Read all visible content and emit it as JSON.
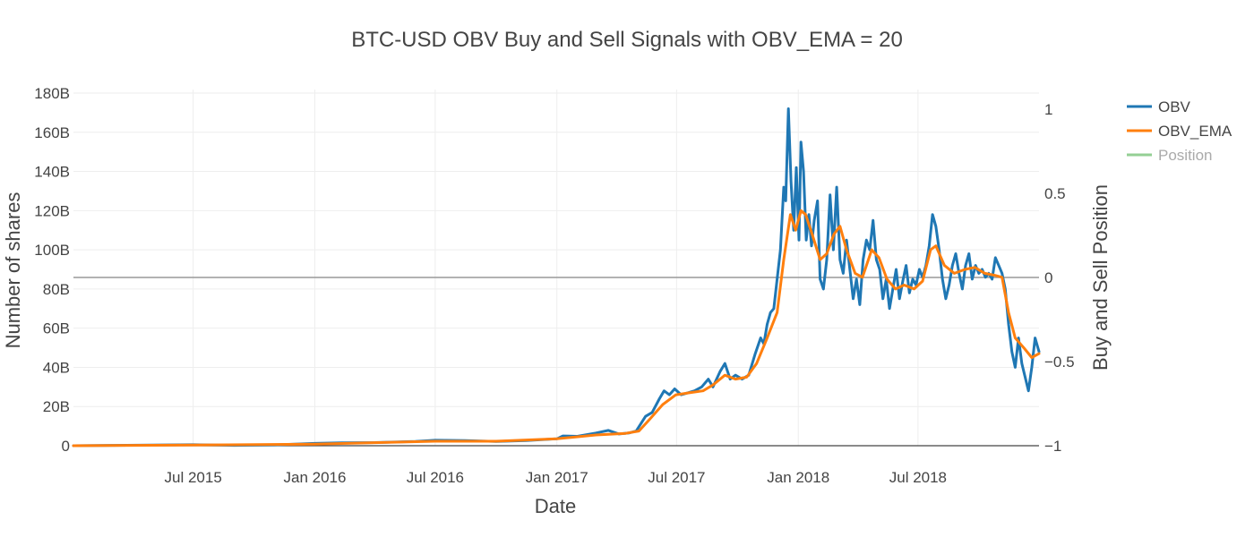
{
  "chart_data": {
    "type": "line",
    "title": "BTC-USD OBV Buy and Sell Signals with OBV_EMA = 20",
    "xlabel": "Date",
    "ylabel": "Number of shares",
    "y2label": "Buy and Sell Position",
    "x_range": [
      "2015-01-01",
      "2018-12-31"
    ],
    "x_ticks": [
      {
        "date": "2015-07-01",
        "label": "Jul 2015"
      },
      {
        "date": "2016-01-01",
        "label": "Jan 2016"
      },
      {
        "date": "2016-07-01",
        "label": "Jul 2016"
      },
      {
        "date": "2017-01-01",
        "label": "Jan 2017"
      },
      {
        "date": "2017-07-01",
        "label": "Jul 2017"
      },
      {
        "date": "2018-01-01",
        "label": "Jan 2018"
      },
      {
        "date": "2018-07-01",
        "label": "Jul 2018"
      }
    ],
    "ylim": [
      0,
      180
    ],
    "y_ticks": [
      {
        "value": 0,
        "label": "0"
      },
      {
        "value": 20,
        "label": "20B"
      },
      {
        "value": 40,
        "label": "40B"
      },
      {
        "value": 60,
        "label": "60B"
      },
      {
        "value": 80,
        "label": "80B"
      },
      {
        "value": 100,
        "label": "100B"
      },
      {
        "value": 120,
        "label": "120B"
      },
      {
        "value": 140,
        "label": "140B"
      },
      {
        "value": 160,
        "label": "160B"
      },
      {
        "value": 180,
        "label": "180B"
      }
    ],
    "y2lim": [
      -1,
      1
    ],
    "y2_ticks": [
      {
        "value": 1,
        "label": "1"
      },
      {
        "value": 0.5,
        "label": "0.5"
      },
      {
        "value": 0,
        "label": "0"
      },
      {
        "value": -0.5,
        "label": "−0.5"
      },
      {
        "value": -1,
        "label": "−1"
      }
    ],
    "grid": true,
    "legend_position": "top-right",
    "series": [
      {
        "name": "OBV",
        "color": "#1f77b4",
        "axis": "y",
        "points": [
          [
            "2015-01-01",
            0
          ],
          [
            "2015-03-01",
            0.2
          ],
          [
            "2015-05-01",
            0.3
          ],
          [
            "2015-07-01",
            0.5
          ],
          [
            "2015-09-01",
            0.2
          ],
          [
            "2015-11-01",
            0.4
          ],
          [
            "2016-01-01",
            1.2
          ],
          [
            "2016-02-15",
            1.5
          ],
          [
            "2016-04-01",
            1.6
          ],
          [
            "2016-06-01",
            2.2
          ],
          [
            "2016-07-01",
            2.8
          ],
          [
            "2016-08-15",
            2.6
          ],
          [
            "2016-10-01",
            2.2
          ],
          [
            "2016-11-15",
            2.6
          ],
          [
            "2017-01-01",
            3.5
          ],
          [
            "2017-01-10",
            5.0
          ],
          [
            "2017-02-01",
            4.8
          ],
          [
            "2017-03-01",
            6.5
          ],
          [
            "2017-03-20",
            7.8
          ],
          [
            "2017-04-05",
            6.0
          ],
          [
            "2017-04-20",
            6.5
          ],
          [
            "2017-05-01",
            7.5
          ],
          [
            "2017-05-15",
            15
          ],
          [
            "2017-05-25",
            17
          ],
          [
            "2017-06-05",
            24
          ],
          [
            "2017-06-12",
            28
          ],
          [
            "2017-06-20",
            26
          ],
          [
            "2017-06-28",
            29
          ],
          [
            "2017-07-08",
            26
          ],
          [
            "2017-07-18",
            27
          ],
          [
            "2017-07-28",
            28
          ],
          [
            "2017-08-08",
            30
          ],
          [
            "2017-08-18",
            34
          ],
          [
            "2017-08-25",
            30
          ],
          [
            "2017-09-05",
            38
          ],
          [
            "2017-09-12",
            42
          ],
          [
            "2017-09-20",
            34
          ],
          [
            "2017-09-28",
            36
          ],
          [
            "2017-10-08",
            34
          ],
          [
            "2017-10-18",
            36
          ],
          [
            "2017-10-28",
            47
          ],
          [
            "2017-11-05",
            55
          ],
          [
            "2017-11-10",
            52
          ],
          [
            "2017-11-15",
            62
          ],
          [
            "2017-11-20",
            68
          ],
          [
            "2017-11-25",
            70
          ],
          [
            "2017-11-30",
            85
          ],
          [
            "2017-12-05",
            100
          ],
          [
            "2017-12-10",
            132
          ],
          [
            "2017-12-13",
            125
          ],
          [
            "2017-12-17",
            172
          ],
          [
            "2017-12-21",
            135
          ],
          [
            "2017-12-25",
            110
          ],
          [
            "2017-12-29",
            142
          ],
          [
            "2018-01-02",
            105
          ],
          [
            "2018-01-05",
            155
          ],
          [
            "2018-01-09",
            140
          ],
          [
            "2018-01-13",
            105
          ],
          [
            "2018-01-17",
            118
          ],
          [
            "2018-01-21",
            102
          ],
          [
            "2018-01-25",
            115
          ],
          [
            "2018-01-30",
            125
          ],
          [
            "2018-02-03",
            85
          ],
          [
            "2018-02-08",
            80
          ],
          [
            "2018-02-13",
            95
          ],
          [
            "2018-02-18",
            128
          ],
          [
            "2018-02-23",
            100
          ],
          [
            "2018-02-28",
            132
          ],
          [
            "2018-03-05",
            95
          ],
          [
            "2018-03-10",
            88
          ],
          [
            "2018-03-15",
            105
          ],
          [
            "2018-03-20",
            90
          ],
          [
            "2018-03-25",
            75
          ],
          [
            "2018-03-30",
            85
          ],
          [
            "2018-04-04",
            72
          ],
          [
            "2018-04-09",
            95
          ],
          [
            "2018-04-14",
            105
          ],
          [
            "2018-04-19",
            100
          ],
          [
            "2018-04-24",
            115
          ],
          [
            "2018-04-29",
            95
          ],
          [
            "2018-05-04",
            90
          ],
          [
            "2018-05-09",
            75
          ],
          [
            "2018-05-14",
            85
          ],
          [
            "2018-05-19",
            70
          ],
          [
            "2018-05-24",
            80
          ],
          [
            "2018-05-29",
            90
          ],
          [
            "2018-06-03",
            75
          ],
          [
            "2018-06-08",
            84
          ],
          [
            "2018-06-13",
            92
          ],
          [
            "2018-06-18",
            78
          ],
          [
            "2018-06-23",
            85
          ],
          [
            "2018-06-28",
            82
          ],
          [
            "2018-07-03",
            90
          ],
          [
            "2018-07-08",
            86
          ],
          [
            "2018-07-13",
            92
          ],
          [
            "2018-07-18",
            102
          ],
          [
            "2018-07-23",
            118
          ],
          [
            "2018-07-28",
            112
          ],
          [
            "2018-08-02",
            100
          ],
          [
            "2018-08-07",
            85
          ],
          [
            "2018-08-12",
            75
          ],
          [
            "2018-08-17",
            82
          ],
          [
            "2018-08-22",
            92
          ],
          [
            "2018-08-27",
            98
          ],
          [
            "2018-09-01",
            88
          ],
          [
            "2018-09-06",
            80
          ],
          [
            "2018-09-11",
            92
          ],
          [
            "2018-09-16",
            98
          ],
          [
            "2018-09-21",
            85
          ],
          [
            "2018-09-26",
            92
          ],
          [
            "2018-10-01",
            88
          ],
          [
            "2018-10-06",
            90
          ],
          [
            "2018-10-11",
            86
          ],
          [
            "2018-10-16",
            88
          ],
          [
            "2018-10-21",
            85
          ],
          [
            "2018-10-26",
            96
          ],
          [
            "2018-10-31",
            92
          ],
          [
            "2018-11-05",
            88
          ],
          [
            "2018-11-10",
            80
          ],
          [
            "2018-11-15",
            62
          ],
          [
            "2018-11-20",
            48
          ],
          [
            "2018-11-25",
            40
          ],
          [
            "2018-11-30",
            55
          ],
          [
            "2018-12-05",
            42
          ],
          [
            "2018-12-10",
            35
          ],
          [
            "2018-12-15",
            28
          ],
          [
            "2018-12-20",
            40
          ],
          [
            "2018-12-25",
            55
          ],
          [
            "2018-12-31",
            48
          ]
        ]
      },
      {
        "name": "OBV_EMA",
        "color": "#ff7f0e",
        "axis": "y",
        "points": [
          [
            "2015-01-01",
            0
          ],
          [
            "2015-07-01",
            0.3
          ],
          [
            "2016-01-01",
            0.8
          ],
          [
            "2016-07-01",
            2.3
          ],
          [
            "2016-10-01",
            2.3
          ],
          [
            "2017-01-01",
            3.5
          ],
          [
            "2017-03-01",
            5.5
          ],
          [
            "2017-04-15",
            6.3
          ],
          [
            "2017-05-05",
            7.5
          ],
          [
            "2017-05-20",
            13
          ],
          [
            "2017-06-10",
            21
          ],
          [
            "2017-06-30",
            26
          ],
          [
            "2017-07-20",
            27
          ],
          [
            "2017-08-10",
            28
          ],
          [
            "2017-08-25",
            31
          ],
          [
            "2017-09-12",
            36
          ],
          [
            "2017-09-28",
            34
          ],
          [
            "2017-10-15",
            35
          ],
          [
            "2017-10-30",
            42
          ],
          [
            "2017-11-15",
            55
          ],
          [
            "2017-11-30",
            68
          ],
          [
            "2017-12-10",
            95
          ],
          [
            "2017-12-20",
            118
          ],
          [
            "2017-12-28",
            110
          ],
          [
            "2018-01-05",
            120
          ],
          [
            "2018-01-12",
            118
          ],
          [
            "2018-01-22",
            108
          ],
          [
            "2018-02-03",
            95
          ],
          [
            "2018-02-13",
            98
          ],
          [
            "2018-02-24",
            108
          ],
          [
            "2018-03-05",
            112
          ],
          [
            "2018-03-15",
            100
          ],
          [
            "2018-03-28",
            88
          ],
          [
            "2018-04-08",
            86
          ],
          [
            "2018-04-22",
            100
          ],
          [
            "2018-05-03",
            96
          ],
          [
            "2018-05-15",
            85
          ],
          [
            "2018-05-28",
            80
          ],
          [
            "2018-06-10",
            82
          ],
          [
            "2018-06-25",
            80
          ],
          [
            "2018-07-08",
            84
          ],
          [
            "2018-07-20",
            100
          ],
          [
            "2018-07-28",
            102
          ],
          [
            "2018-08-10",
            92
          ],
          [
            "2018-08-25",
            88
          ],
          [
            "2018-09-10",
            90
          ],
          [
            "2018-09-25",
            91
          ],
          [
            "2018-10-10",
            88
          ],
          [
            "2018-10-25",
            87
          ],
          [
            "2018-11-05",
            86
          ],
          [
            "2018-11-15",
            68
          ],
          [
            "2018-11-25",
            55
          ],
          [
            "2018-12-08",
            50
          ],
          [
            "2018-12-20",
            45
          ],
          [
            "2018-12-31",
            47
          ]
        ]
      },
      {
        "name": "Position",
        "color": "#2ca02c",
        "axis": "y2",
        "visible": "legendonly",
        "points": []
      }
    ]
  }
}
